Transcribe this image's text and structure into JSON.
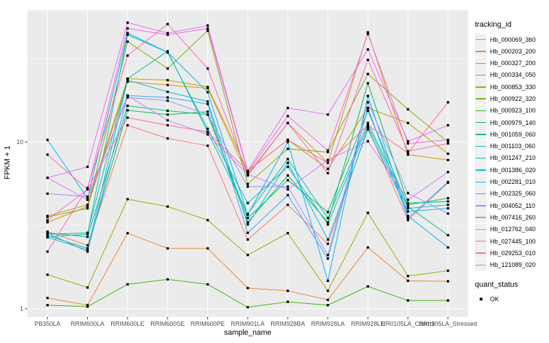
{
  "chart_data": {
    "type": "line",
    "title": "",
    "xlabel": "sample_name",
    "ylabel": "FPKM + 1",
    "y_scale": "log10",
    "y_ticks": [
      1,
      10
    ],
    "y_minor": [
      3.1623,
      31.623
    ],
    "ylim": [
      0.88,
      61
    ],
    "grid": "on",
    "panel_bg": "#EBEBEB",
    "grid_color": "#FFFFFF",
    "tick_label_color": "#4D4D4D",
    "point_shape": "square",
    "point_color": "#000000",
    "legend_position": "right",
    "legend_title": "tracking_id",
    "legend2_title": "quant_status",
    "legend2_items": [
      "OK"
    ],
    "x_categories": [
      "PB350LA",
      "RRIM600LA",
      "RRIM600LE",
      "RRIM600SE",
      "RRIM600PE",
      "RRIM901LA",
      "RRIM928BA",
      "RRIM928LA",
      "RRIM928LE",
      "RRII105LA_Control",
      "RRII105LA_Stressed"
    ],
    "series": [
      {
        "name": "Hb_000069_360",
        "color": "#F8766D",
        "values": [
          2.9,
          2.4,
          12.6,
          10.5,
          9.5,
          2.6,
          4.2,
          2.45,
          12.2,
          3.4,
          5.7
        ]
      },
      {
        "name": "Hb_000203_200",
        "color": "#EA8331",
        "values": [
          1.16,
          1.05,
          2.84,
          2.3,
          2.3,
          1.33,
          1.28,
          1.13,
          2.33,
          1.47,
          1.46
        ]
      },
      {
        "name": "Hb_000327_200",
        "color": "#D89000",
        "values": [
          3.3,
          4.1,
          23,
          22,
          21,
          6.3,
          13,
          7.5,
          45.5,
          8.4,
          7.8
        ]
      },
      {
        "name": "Hb_000334_050",
        "color": "#C09B00",
        "values": [
          3.6,
          4.2,
          24,
          23.5,
          21.4,
          6.7,
          10.3,
          6.9,
          16,
          13,
          8.5
        ]
      },
      {
        "name": "Hb_000853_330",
        "color": "#A3A500",
        "values": [
          1.6,
          1.34,
          4.54,
          4.1,
          3.4,
          2.1,
          2.84,
          1.28,
          3.76,
          1.57,
          1.69
        ]
      },
      {
        "name": "Hb_000922_320",
        "color": "#7CAE00",
        "values": [
          3.55,
          4.0,
          40,
          27.6,
          46.5,
          5.6,
          9.1,
          8.7,
          25.6,
          15.7,
          10.0
        ]
      },
      {
        "name": "Hb_000923_100",
        "color": "#39B600",
        "values": [
          1.05,
          1.03,
          1.4,
          1.5,
          1.4,
          1.02,
          1.1,
          1.05,
          1.36,
          1.12,
          1.12
        ]
      },
      {
        "name": "Hb_000979_140",
        "color": "#00BB4E",
        "values": [
          2.75,
          2.3,
          15.5,
          14.6,
          15.2,
          3.3,
          6.3,
          3.3,
          22.5,
          4.3,
          4.4
        ]
      },
      {
        "name": "Hb_001059_060",
        "color": "#00BF7D",
        "values": [
          2.85,
          2.7,
          16.5,
          15.4,
          14.6,
          3.5,
          5.9,
          3.8,
          15.4,
          4.1,
          2.76
        ]
      },
      {
        "name": "Hb_001103_060",
        "color": "#00C1A3",
        "values": [
          2.8,
          2.85,
          24,
          35,
          11.5,
          3.7,
          7.9,
          3.5,
          13.0,
          4.2,
          4.6
        ]
      },
      {
        "name": "Hb_001247_210",
        "color": "#00BFC4",
        "values": [
          2.7,
          2.8,
          44,
          34.5,
          12.0,
          4.3,
          7.1,
          3.2,
          12.5,
          4.0,
          4.2
        ]
      },
      {
        "name": "Hb_001386_020",
        "color": "#00BAE0",
        "values": [
          2.68,
          2.25,
          23.5,
          20,
          17.5,
          3.2,
          7.5,
          2.6,
          11.9,
          3.83,
          4.0
        ]
      },
      {
        "name": "Hb_002281_010",
        "color": "#00B0F6",
        "values": [
          10.3,
          4.6,
          45,
          34.5,
          19.9,
          3.66,
          10,
          1.47,
          18.9,
          3.6,
          2.33
        ]
      },
      {
        "name": "Hb_002325_060",
        "color": "#35A2FF",
        "values": [
          2.84,
          2.2,
          19,
          18.5,
          16.9,
          2.85,
          4.8,
          2.0,
          16,
          3.5,
          5.75
        ]
      },
      {
        "name": "Hb_004052_110",
        "color": "#9590FF",
        "values": [
          4.9,
          4.7,
          18.5,
          17.7,
          14.6,
          5.4,
          5.4,
          2.1,
          17.3,
          4.94,
          3.72
        ]
      },
      {
        "name": "Hb_007416_260",
        "color": "#C77CFF",
        "values": [
          6.1,
          4.5,
          19,
          13.5,
          11.1,
          6.4,
          5.2,
          7.8,
          10.1,
          4.5,
          6.6
        ]
      },
      {
        "name": "Hb_012762_040",
        "color": "#E76BF3",
        "values": [
          6.1,
          7.1,
          52,
          45,
          50,
          6.7,
          16,
          14.6,
          35.9,
          10.1,
          12.6
        ]
      },
      {
        "name": "Hb_027445_100",
        "color": "#FA62DB",
        "values": [
          3.4,
          5.2,
          48,
          44,
          48,
          6.6,
          14.3,
          8.9,
          44.5,
          9.8,
          10.3
        ]
      },
      {
        "name": "Hb_029253_010",
        "color": "#FF62BC",
        "values": [
          2.2,
          5.3,
          33,
          51,
          27.6,
          6.4,
          13,
          6.5,
          31.1,
          8.8,
          9.8
        ]
      },
      {
        "name": "Hb_121089_020",
        "color": "#FF6A98",
        "values": [
          8.4,
          5.2,
          14,
          12.6,
          11.5,
          6.7,
          10.3,
          7.5,
          12.6,
          8.6,
          17.3
        ]
      }
    ]
  }
}
